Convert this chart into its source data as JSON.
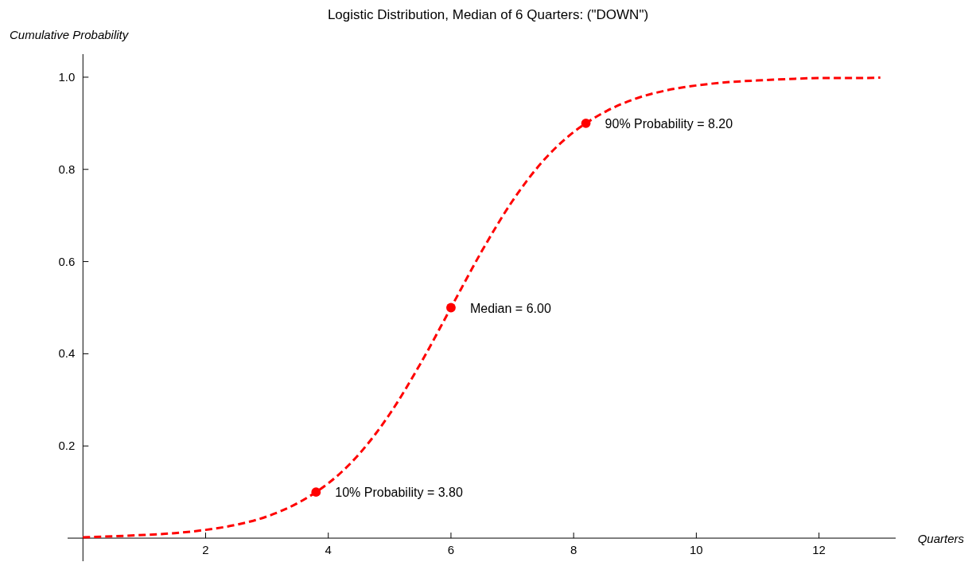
{
  "chart_data": {
    "type": "line",
    "title": "Logistic Distribution, Median of 6 Quarters: (\"DOWN\")",
    "xlabel": "Quarters",
    "ylabel": "Cumulative Probability",
    "xlim": [
      -0.25,
      13.25
    ],
    "ylim": [
      -0.05,
      1.05
    ],
    "xticks": [
      2,
      4,
      6,
      8,
      10,
      12
    ],
    "yticks": [
      0.2,
      0.4,
      0.6,
      0.8,
      {
        "value": 1,
        "label": "1.0"
      }
    ],
    "series": [
      {
        "color": "#ff0000",
        "line_style": "dashed",
        "marker": "none",
        "x": [
          0,
          0.5,
          1,
          1.5,
          2,
          2.5,
          3,
          3.5,
          3.8,
          4,
          4.5,
          5,
          5.5,
          6,
          6.5,
          7,
          7.5,
          8,
          8.2,
          8.5,
          9,
          9.5,
          10,
          10.5,
          11,
          11.5,
          12,
          12.5,
          13
        ],
        "values": [
          0.002,
          0.004,
          0.007,
          0.011,
          0.018,
          0.029,
          0.047,
          0.076,
          0.1,
          0.119,
          0.182,
          0.269,
          0.378,
          0.5,
          0.622,
          0.731,
          0.818,
          0.881,
          0.9,
          0.924,
          0.953,
          0.971,
          0.982,
          0.989,
          0.993,
          0.996,
          0.998,
          0.998,
          0.999
        ]
      },
      {
        "type": "scatter",
        "color": "#ff0000",
        "marker": "circle",
        "x": [
          3.8,
          6,
          8.2
        ],
        "values": [
          0.1,
          0.5,
          0.9
        ]
      }
    ],
    "annotations": [
      {
        "text": "10% Probability = 3.80",
        "x": 3.8,
        "y": 0.1
      },
      {
        "text": "Median = 6.00",
        "x": 6,
        "y": 0.5
      },
      {
        "text": "90% Probability = 8.20",
        "x": 8.2,
        "y": 0.9
      }
    ]
  }
}
